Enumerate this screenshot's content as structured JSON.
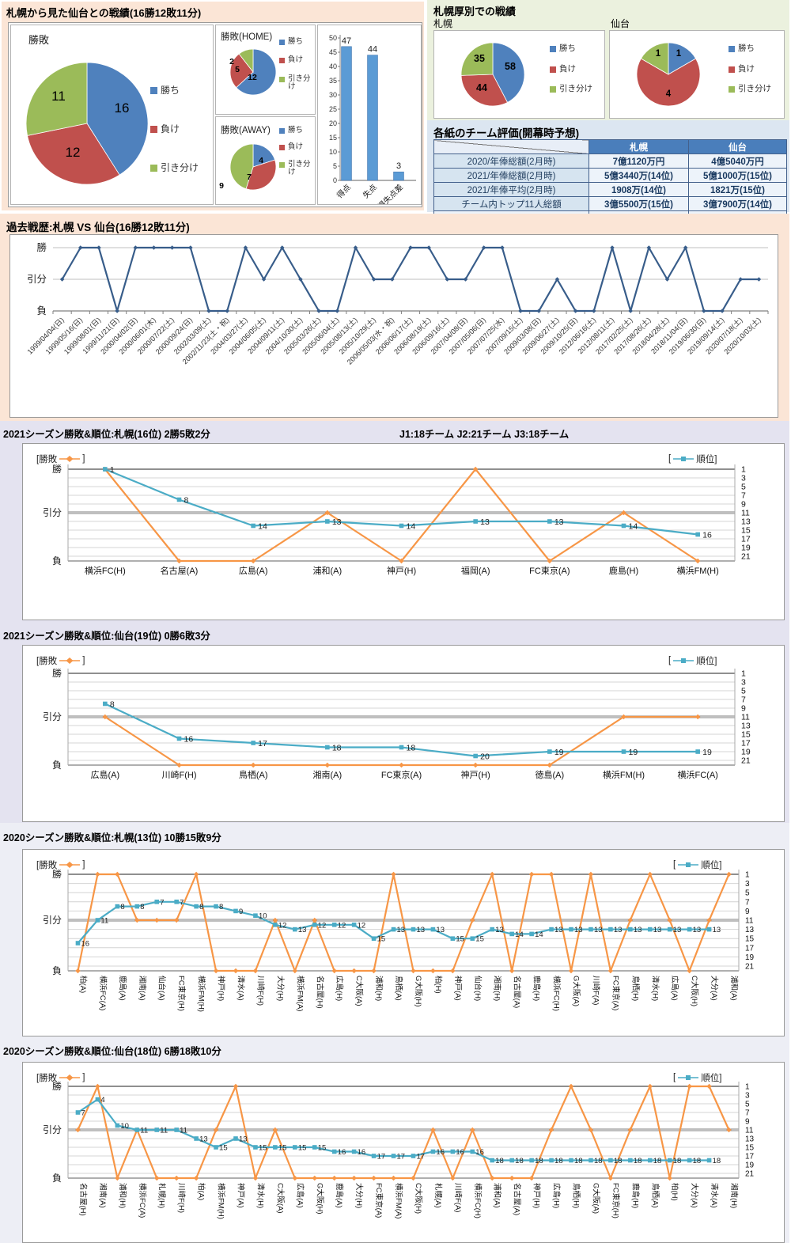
{
  "colors": {
    "win": "#4F81BD",
    "lose": "#C0504D",
    "draw": "#9BBB59",
    "bar": "#5B9BD5",
    "history_line": "#385D8A",
    "result_line": "#F79646",
    "rank_line": "#4BACC6",
    "table_header_bg": "#4A7EBB"
  },
  "sections": {
    "record_title": "札幌から見た仙台との戦績(16勝12敗11分)",
    "atsubetsu_title": "札幌厚別での戦績",
    "evaluation_title": "各紙のチーム評価(開幕時予想)"
  },
  "chart_data": [
    {
      "id": "main-pie",
      "type": "pie",
      "title": "勝敗",
      "legend": [
        "勝ち",
        "負け",
        "引き分け"
      ],
      "categories": [
        "勝ち",
        "負け",
        "引き分け"
      ],
      "values": [
        16,
        12,
        11
      ]
    },
    {
      "id": "home-pie",
      "type": "pie",
      "title": "勝敗(HOME)",
      "legend": [
        "勝ち",
        "負け",
        "引き分け"
      ],
      "categories": [
        "勝ち",
        "負け",
        "引き分け"
      ],
      "values": [
        12,
        5,
        2
      ]
    },
    {
      "id": "away-pie",
      "type": "pie",
      "title": "勝敗(AWAY)",
      "legend": [
        "勝ち",
        "負け",
        "引き分け"
      ],
      "categories": [
        "勝ち",
        "負け",
        "引き分け"
      ],
      "values": [
        4,
        7,
        9
      ]
    },
    {
      "id": "score-bar",
      "type": "bar",
      "categories": [
        "得点",
        "失点",
        "得失点差"
      ],
      "values": [
        47,
        44,
        3
      ],
      "ylim": [
        0,
        50
      ],
      "ystep": 5
    },
    {
      "id": "atsubetsu-sapporo",
      "type": "pie",
      "team": "札幌",
      "legend": [
        "勝ち",
        "負け",
        "引き分け"
      ],
      "categories": [
        "勝ち",
        "負け",
        "引き分け"
      ],
      "values": [
        58,
        44,
        35
      ]
    },
    {
      "id": "atsubetsu-sendai",
      "type": "pie",
      "team": "仙台",
      "legend": [
        "勝ち",
        "負け",
        "引き分け"
      ],
      "categories": [
        "勝ち",
        "負け",
        "引き分け"
      ],
      "values": [
        1,
        4,
        1
      ]
    },
    {
      "id": "history",
      "type": "line",
      "title": "過去戦歴:札幌 VS 仙台(16勝12敗11分)",
      "y_labels": [
        "勝",
        "引分",
        "負"
      ],
      "x": [
        "1999/04/04(日)",
        "1999/05/16(日)",
        "1999/08/01(日)",
        "1999/11/21(日)",
        "2000/04/02(日)",
        "2000/06/01(木)",
        "2000/07/22(土)",
        "2000/09/24(日)",
        "2002/03/09(土)",
        "2002/11/23(土・祝)",
        "2004/03/27(土)",
        "2004/06/05(土)",
        "2004/09/11(土)",
        "2004/10/30(土)",
        "2005/03/26(土)",
        "2005/06/04(土)",
        "2005/08/13(土)",
        "2005/10/29(土)",
        "2006/05/03(水・祝)",
        "2006/06/17(土)",
        "2006/08/19(土)",
        "2006/09/16(土)",
        "2007/04/08(日)",
        "2007/05/06(日)",
        "2007/07/25(水)",
        "2007/09/15(土)",
        "2009/03/08(日)",
        "2009/06/27(土)",
        "2009/10/25(日)",
        "2012/06/16(土)",
        "2012/08/11(土)",
        "2017/02/25(土)",
        "2017/08/26(土)",
        "2018/04/28(土)",
        "2018/11/04(日)",
        "2019/06/30(日)",
        "2019/09/14(土)",
        "2020/07/18(土)",
        "2020/10/03(土)"
      ],
      "results": [
        "引分",
        "勝",
        "勝",
        "負",
        "勝",
        "勝",
        "勝",
        "勝",
        "負",
        "負",
        "勝",
        "引分",
        "勝",
        "引分",
        "負",
        "負",
        "勝",
        "引分",
        "引分",
        "勝",
        "勝",
        "引分",
        "引分",
        "勝",
        "勝",
        "負",
        "負",
        "引分",
        "負",
        "負",
        "勝",
        "負",
        "勝",
        "引分",
        "勝",
        "負",
        "負",
        "引分",
        "引分"
      ]
    },
    {
      "id": "season-2021-sapporo",
      "type": "line",
      "title": "2021シーズン勝敗&順位:札幌(16位) 2勝5敗2分",
      "note": "J1:18チーム  J2:21チーム  J3:18チーム",
      "legend_left_pre": "[勝敗",
      "legend_left_post": "]",
      "legend_right_pre": "[",
      "legend_right_post": "順位]",
      "legend_result": "勝敗",
      "legend_rank": "順位",
      "y_labels": [
        "勝",
        "引分",
        "負"
      ],
      "right_axis": [
        1,
        3,
        5,
        7,
        9,
        11,
        13,
        15,
        17,
        19,
        21
      ],
      "x": [
        "横浜FC(H)",
        "名古屋(A)",
        "広島(A)",
        "浦和(A)",
        "神戸(H)",
        "福岡(A)",
        "FC東京(A)",
        "鹿島(H)",
        "横浜FM(H)"
      ],
      "results": [
        "勝",
        "負",
        "負",
        "引分",
        "負",
        "勝",
        "負",
        "引分",
        "負"
      ],
      "ranks": [
        1,
        8,
        14,
        13,
        14,
        13,
        13,
        14,
        16
      ]
    },
    {
      "id": "season-2021-sendai",
      "type": "line",
      "title": "2021シーズン勝敗&順位:仙台(19位) 0勝6敗3分",
      "legend_left_pre": "[勝敗",
      "legend_left_post": "]",
      "legend_right_pre": "[",
      "legend_right_post": "順位]",
      "legend_result": "勝敗",
      "legend_rank": "順位",
      "y_labels": [
        "勝",
        "引分",
        "負"
      ],
      "right_axis": [
        1,
        3,
        5,
        7,
        9,
        11,
        13,
        15,
        17,
        19,
        21
      ],
      "x": [
        "広島(A)",
        "川崎F(H)",
        "鳥栖(A)",
        "湘南(A)",
        "FC東京(A)",
        "神戸(H)",
        "徳島(A)",
        "横浜FM(H)",
        "横浜FC(A)"
      ],
      "results": [
        "引分",
        "負",
        "負",
        "負",
        "負",
        "負",
        "負",
        "引分",
        "引分"
      ],
      "ranks": [
        8,
        16,
        17,
        18,
        18,
        20,
        19,
        19,
        19
      ]
    },
    {
      "id": "season-2020-sapporo",
      "type": "line",
      "title": "2020シーズン勝敗&順位:札幌(13位) 10勝15敗9分",
      "legend_left_pre": "[勝敗",
      "legend_left_post": "]",
      "legend_right_pre": "[",
      "legend_right_post": "順位]",
      "legend_result": "勝敗",
      "legend_rank": "順位",
      "y_labels": [
        "勝",
        "引分",
        "負"
      ],
      "right_axis": [
        1,
        3,
        5,
        7,
        9,
        11,
        13,
        15,
        17,
        19,
        21
      ],
      "x": [
        "柏(A)",
        "横浜FC(A)",
        "鹿島(A)",
        "湘南(A)",
        "仙台(A)",
        "FC東京(H)",
        "横浜FM(H)",
        "神戸(H)",
        "清水(A)",
        "川崎F(H)",
        "大分(H)",
        "横浜FM(A)",
        "名古屋(H)",
        "広島(H)",
        "C大阪(A)",
        "浦和(H)",
        "鳥栖(A)",
        "G大阪(H)",
        "柏(H)",
        "神戸(A)",
        "仙台(H)",
        "湘南(H)",
        "名古屋(A)",
        "鹿島(H)",
        "横浜FC(H)",
        "G大阪(A)",
        "川崎F(A)",
        "FC東京(A)",
        "鳥栖(H)",
        "清水(H)",
        "広島(A)",
        "C大阪(H)",
        "大分(A)",
        "浦和(A)"
      ],
      "results": [
        "負",
        "勝",
        "勝",
        "引分",
        "引分",
        "引分",
        "勝",
        "負",
        "負",
        "負",
        "引分",
        "負",
        "引分",
        "負",
        "負",
        "負",
        "勝",
        "負",
        "負",
        "負",
        "引分",
        "勝",
        "負",
        "勝",
        "勝",
        "負",
        "勝",
        "負",
        "引分",
        "勝",
        "引分",
        "負",
        "引分",
        "勝"
      ],
      "ranks": [
        16,
        11,
        8,
        8,
        7,
        7,
        8,
        8,
        9,
        10,
        12,
        13,
        12,
        12,
        12,
        15,
        13,
        13,
        13,
        15,
        15,
        13,
        14,
        14,
        13,
        13,
        13,
        13,
        13,
        13,
        13,
        13,
        13,
        null
      ]
    },
    {
      "id": "season-2020-sendai",
      "type": "line",
      "title": "2020シーズン勝敗&順位:仙台(18位) 6勝18敗10分",
      "legend_left_pre": "[勝敗",
      "legend_left_post": "]",
      "legend_right_pre": "[",
      "legend_right_post": "順位]",
      "legend_result": "勝敗",
      "legend_rank": "順位",
      "y_labels": [
        "勝",
        "引分",
        "負"
      ],
      "right_axis": [
        1,
        3,
        5,
        7,
        9,
        11,
        13,
        15,
        17,
        19,
        21
      ],
      "x": [
        "名古屋(H)",
        "湘南(A)",
        "浦和(H)",
        "横浜FC(A)",
        "札幌(H)",
        "川崎F(H)",
        "柏(A)",
        "横浜FM(H)",
        "神戸(A)",
        "清水(H)",
        "C大阪(A)",
        "広島(A)",
        "G大阪(H)",
        "鹿島(A)",
        "大分(H)",
        "FC東京(A)",
        "横浜FM(A)",
        "C大阪(H)",
        "札幌(A)",
        "川崎F(A)",
        "横浜FC(H)",
        "浦和(A)",
        "名古屋(A)",
        "神戸(H)",
        "広島(H)",
        "鳥栖(H)",
        "G大阪(A)",
        "FC東京(H)",
        "鹿島(H)",
        "鳥栖(A)",
        "柏(H)",
        "大分(A)",
        "清水(A)",
        "湘南(H)"
      ],
      "results": [
        "引分",
        "勝",
        "負",
        "引分",
        "負",
        "負",
        "負",
        "引分",
        "勝",
        "負",
        "引分",
        "負",
        "負",
        "負",
        "負",
        "負",
        "負",
        "負",
        "引分",
        "負",
        "引分",
        "負",
        "負",
        "負",
        "引分",
        "勝",
        "引分",
        "負",
        "引分",
        "勝",
        "負",
        "勝",
        "勝",
        "引分"
      ],
      "ranks": [
        7,
        4,
        10,
        11,
        11,
        11,
        13,
        15,
        13,
        15,
        15,
        15,
        15,
        16,
        16,
        17,
        17,
        17,
        16,
        16,
        16,
        18,
        18,
        18,
        18,
        18,
        18,
        18,
        18,
        18,
        18,
        18,
        18,
        null
      ]
    },
    {
      "id": "evaluation",
      "type": "table",
      "title": "各紙のチーム評価(開幕時予想)",
      "columns": [
        "札幌",
        "仙台"
      ],
      "rows": [
        [
          "2020/年俸総額(2月時)",
          "7億1120万円",
          "4億5040万円"
        ],
        [
          "2021/年俸総額(2月時)",
          "5億3440万(14位)",
          "5億1000万(15位)"
        ],
        [
          "2021/年俸平均(2月時)",
          "1908万(14位)",
          "1821万(15位)"
        ],
        [
          "チーム内トップ11人総額",
          "3億5500万(15位)",
          "3億7900万(14位)"
        ]
      ]
    }
  ]
}
